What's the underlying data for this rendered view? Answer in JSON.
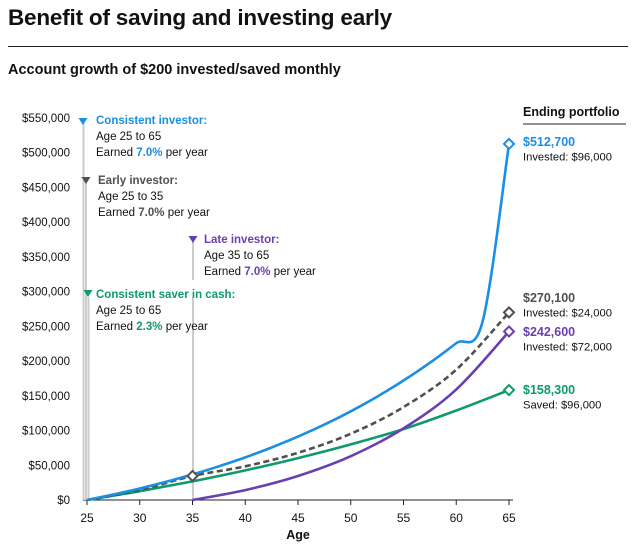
{
  "title": "Benefit of saving and investing early",
  "subtitle": "Account growth of $200 invested/saved monthly",
  "colors": {
    "consistent_investor": "#1a8fe3",
    "early_investor": "#505050",
    "late_investor": "#6a3fb0",
    "consistent_saver": "#0f9a6a",
    "marker_line": "#cccccc"
  },
  "chart_data": {
    "type": "line",
    "xlabel": "Age",
    "ylabel": "",
    "xlim": [
      25,
      65
    ],
    "ylim": [
      0,
      550000
    ],
    "x_ticks": [
      "25",
      "30",
      "35",
      "40",
      "45",
      "50",
      "55",
      "60",
      "65"
    ],
    "x_tick_values": [
      25,
      30,
      35,
      40,
      45,
      50,
      55,
      60,
      65
    ],
    "y_ticks": [
      "$0",
      "$50,000",
      "$100,000",
      "$150,000",
      "$200,000",
      "$250,000",
      "$300,000",
      "$350,000",
      "$400,000",
      "$450,000",
      "$500,000",
      "$550,000"
    ],
    "y_tick_values": [
      0,
      50000,
      100000,
      150000,
      200000,
      250000,
      300000,
      350000,
      400000,
      450000,
      500000,
      550000
    ],
    "grid": false,
    "legend_header": "Ending portfolio",
    "series": [
      {
        "key": "consistent_investor",
        "name": "Consistent investor:",
        "style": "solid",
        "x": [
          25,
          27.5,
          30,
          32.5,
          35,
          37.5,
          40,
          42.5,
          45,
          47.5,
          50,
          52.5,
          55,
          57.5,
          60,
          62.5,
          65
        ],
        "y": [
          0,
          7900,
          16600,
          26200,
          36800,
          48500,
          61400,
          75600,
          91300,
          108600,
          127700,
          148800,
          172000,
          197600,
          225900,
          257000,
          512700
        ],
        "end_value": "$512,700",
        "end_note": "Invested: $96,000",
        "annotation": {
          "title": "Consistent investor:",
          "line1": "Age 25 to 65",
          "line2_prefix": "Earned ",
          "rate": "7.0%",
          "line2_suffix": " per year"
        }
      },
      {
        "key": "early_investor",
        "name": "Early investor:",
        "style": "dashed",
        "x": [
          25,
          30,
          35,
          40,
          45,
          50,
          55,
          60,
          65
        ],
        "y": [
          0,
          14300,
          34600,
          48500,
          68000,
          95400,
          133800,
          187700,
          270100
        ],
        "end_value": "$270,100",
        "end_note": "Invested: $24,000",
        "annotation": {
          "title": "Early investor:",
          "line1": "Age 25 to 35",
          "line2_prefix": "Earned ",
          "rate": "7.0%",
          "line2_suffix": " per year"
        }
      },
      {
        "key": "late_investor",
        "name": "Late investor:",
        "style": "solid",
        "x": [
          35,
          40,
          45,
          50,
          55,
          60,
          65
        ],
        "y": [
          0,
          14300,
          34600,
          63100,
          103100,
          159200,
          242600
        ],
        "end_value": "$242,600",
        "end_note": "Invested: $72,000",
        "annotation": {
          "title": "Late investor:",
          "line1": "Age 35 to 65",
          "line2_prefix": "Earned ",
          "rate": "7.0%",
          "line2_suffix": " per year"
        }
      },
      {
        "key": "consistent_saver",
        "name": "Consistent saver in cash:",
        "style": "solid",
        "x": [
          25,
          30,
          35,
          40,
          45,
          50,
          55,
          60,
          65
        ],
        "y": [
          0,
          12700,
          26800,
          42600,
          60300,
          80100,
          102100,
          128800,
          158300
        ],
        "end_value": "$158,300",
        "end_note": "Saved: $96,000",
        "annotation": {
          "title": "Consistent saver in cash:",
          "line1": "Age 25 to 65",
          "line2_prefix": "Earned ",
          "rate": "2.3%",
          "line2_suffix": " per year"
        }
      }
    ]
  }
}
